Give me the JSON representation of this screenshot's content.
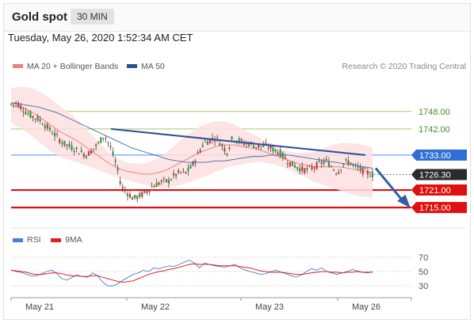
{
  "header": {
    "title": "Gold spot",
    "timeframe": "30 MIN"
  },
  "datetime": "Tuesday, May 26, 2020 1:52:34 AM CET",
  "legend": {
    "ma20_label": "MA 20 + Bollinger Bands",
    "ma50_label": "MA 50",
    "credit": "Research © 2020 Trading Central"
  },
  "colors": {
    "ma20": "#f08080",
    "ma50": "#2a4f95",
    "rsi": "#4f79d6",
    "rsi_ma": "#e02020",
    "up": "#2e9e3a",
    "down": "#c83a3a",
    "resistance": "#4a89f0",
    "support": "#e01010",
    "target_line": "#a3c96a",
    "trend": "#2b4f95",
    "bands": "#fde0e0"
  },
  "chart_data": {
    "type": "candlestick",
    "x_ticks": [
      "May 21",
      "May 22",
      "May 23",
      "May 26"
    ],
    "price_axis": {
      "ylim": [
        1708.5,
        1758
      ]
    },
    "levels": [
      {
        "value": "1748.00",
        "kind": "target"
      },
      {
        "value": "1742.00",
        "kind": "target"
      },
      {
        "value": "1733.00",
        "kind": "resistance"
      },
      {
        "value": "1726.30",
        "kind": "current"
      },
      {
        "value": "1721.00",
        "kind": "support"
      },
      {
        "value": "1715.00",
        "kind": "support"
      }
    ],
    "price": {
      "start": 1750.5,
      "path": [
        1750.5,
        1751,
        1749,
        1747,
        1746,
        1745,
        1743,
        1741,
        1739,
        1737,
        1736,
        1735,
        1734,
        1733,
        1735,
        1737,
        1740,
        1736,
        1730,
        1722,
        1720,
        1718,
        1719,
        1720,
        1722,
        1723,
        1724,
        1724,
        1726,
        1727,
        1727,
        1729,
        1733,
        1737,
        1738,
        1739,
        1737,
        1734,
        1739,
        1738,
        1737,
        1737,
        1736,
        1736,
        1736,
        1735,
        1734,
        1732,
        1730,
        1729,
        1728,
        1728,
        1729,
        1730,
        1731,
        1729,
        1727,
        1730,
        1731,
        1729,
        1728,
        1727,
        1726.3
      ]
    },
    "ma20_path": [
      1750,
      1749.5,
      1748.5,
      1747,
      1745,
      1743,
      1741,
      1739.5,
      1738,
      1736,
      1734,
      1732,
      1730,
      1728.5,
      1727.5,
      1727,
      1726.5,
      1726.5,
      1727,
      1728,
      1729.5,
      1731,
      1732.5,
      1734,
      1735,
      1736,
      1736.5,
      1736.5,
      1736,
      1735.5,
      1735,
      1734,
      1733,
      1732,
      1731,
      1730,
      1729.5,
      1729,
      1729,
      1729,
      1729,
      1728.5,
      1728,
      1727.5,
      1727
    ],
    "ma50_path": [
      1751,
      1750.5,
      1750,
      1749.5,
      1748.5,
      1747.5,
      1746,
      1744.5,
      1743,
      1741.5,
      1740,
      1738.5,
      1737,
      1735.5,
      1734.5,
      1733.5,
      1732.5,
      1731.5,
      1731,
      1730.5,
      1730.5,
      1730.5,
      1731,
      1731,
      1731.5,
      1732,
      1732.5,
      1732.5,
      1733,
      1733,
      1733,
      1732.5,
      1732,
      1731.5,
      1731,
      1730.5,
      1730,
      1729.5,
      1729,
      1728.5
    ],
    "trendline": [
      [
        0.155,
        1742
      ],
      [
        0.335,
        1733
      ]
    ],
    "forecast_arrow": [
      [
        0.335,
        1728.5
      ],
      [
        0.365,
        1715.7
      ]
    ],
    "rsi": {
      "ticks": [
        "70",
        "50",
        "30"
      ],
      "ylim": [
        20,
        80
      ],
      "values": [
        52,
        50,
        49,
        46,
        44,
        44,
        47,
        50,
        52,
        47,
        40,
        38,
        42,
        45,
        43,
        42,
        48,
        44,
        35,
        30,
        30,
        33,
        38,
        42,
        46,
        48,
        52,
        50,
        55,
        54,
        56,
        58,
        57,
        60,
        63,
        66,
        62,
        55,
        62,
        60,
        58,
        57,
        56,
        58,
        60,
        55,
        52,
        50,
        48,
        46,
        47,
        50,
        52,
        49,
        47,
        44,
        42,
        45,
        50,
        54,
        52,
        55,
        50,
        48,
        46,
        48,
        50,
        53,
        51,
        49,
        48,
        50
      ],
      "ma_values": [
        52,
        51,
        50,
        49,
        47,
        46,
        46,
        47,
        48,
        48,
        47,
        45,
        44,
        44,
        43,
        43,
        44,
        44,
        42,
        40,
        38,
        36,
        35,
        36,
        37,
        40,
        43,
        46,
        48,
        50,
        51,
        53,
        54,
        56,
        58,
        60,
        61,
        60,
        60,
        60,
        59,
        58,
        58,
        58,
        58,
        57,
        56,
        55,
        53,
        51,
        50,
        49,
        49,
        49,
        48,
        47,
        46,
        46,
        47,
        48,
        49,
        50,
        50,
        49,
        49,
        48,
        49,
        49,
        50,
        49,
        49,
        49
      ]
    }
  }
}
